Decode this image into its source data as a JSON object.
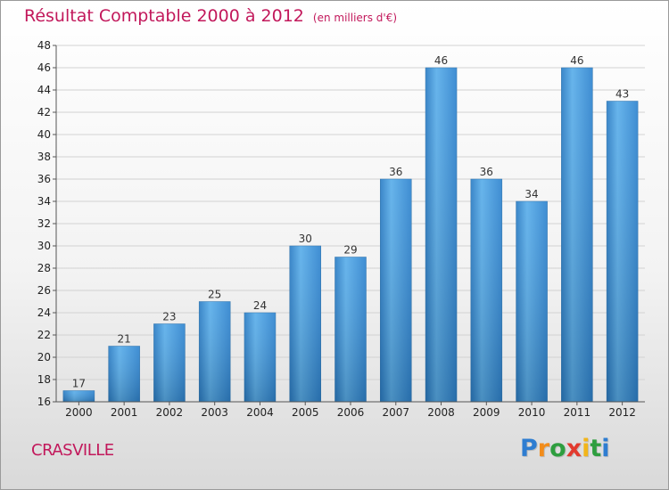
{
  "chart_data": {
    "type": "bar",
    "title": "Résultat Comptable 2000 à 2012",
    "subtitle": "(en milliers d'€)",
    "categories": [
      "2000",
      "2001",
      "2002",
      "2003",
      "2004",
      "2005",
      "2006",
      "2007",
      "2008",
      "2009",
      "2010",
      "2011",
      "2012"
    ],
    "values": [
      17,
      21,
      23,
      25,
      24,
      30,
      29,
      36,
      46,
      36,
      34,
      46,
      43
    ],
    "ylim": [
      16,
      48
    ],
    "yticks": [
      16,
      18,
      20,
      22,
      24,
      26,
      28,
      30,
      32,
      34,
      36,
      38,
      40,
      42,
      44,
      46,
      48
    ],
    "grid": true,
    "bar_color": "#3a8fd6",
    "title_color": "#c2185b"
  },
  "footer": {
    "commune": "CRASVILLE",
    "brand_letters": [
      {
        "ch": "P",
        "color": "#2e7dd1"
      },
      {
        "ch": "r",
        "color": "#f28c1a"
      },
      {
        "ch": "o",
        "color": "#2e9e3f"
      },
      {
        "ch": "x",
        "color": "#e23a2e"
      },
      {
        "ch": "i",
        "color": "#f2b51a"
      },
      {
        "ch": "t",
        "color": "#2e9e3f"
      },
      {
        "ch": "i",
        "color": "#2e7dd1"
      }
    ]
  }
}
